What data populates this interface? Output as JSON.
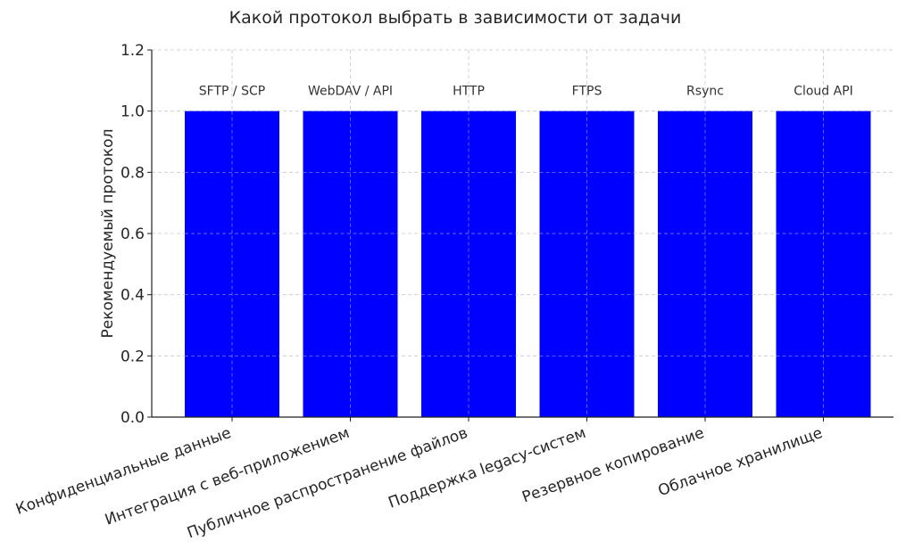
{
  "chart_data": {
    "type": "bar",
    "title": "Какой протокол выбрать в зависимости от задачи",
    "xlabel": "",
    "ylabel": "Рекомендуемый протокол",
    "categories": [
      "Конфиденциальные данные",
      "Интеграция с веб-приложением",
      "Публичное распространение файлов",
      "Поддержка legacy-систем",
      "Резервное копирование",
      "Облачное хранилище"
    ],
    "values": [
      1,
      1,
      1,
      1,
      1,
      1
    ],
    "data_labels": [
      "SFTP / SCP",
      "WebDAV / API",
      "HTTP",
      "FTPS",
      "Rsync",
      "Cloud API"
    ],
    "ylim": [
      0,
      1.2
    ],
    "yticks": [
      "0.0",
      "0.2",
      "0.4",
      "0.6",
      "0.8",
      "1.0",
      "1.2"
    ],
    "grid": true,
    "bar_color": "#0000ff",
    "axis_color": "#222222",
    "grid_color": "#c8c8c8",
    "text_color": "#262626"
  }
}
